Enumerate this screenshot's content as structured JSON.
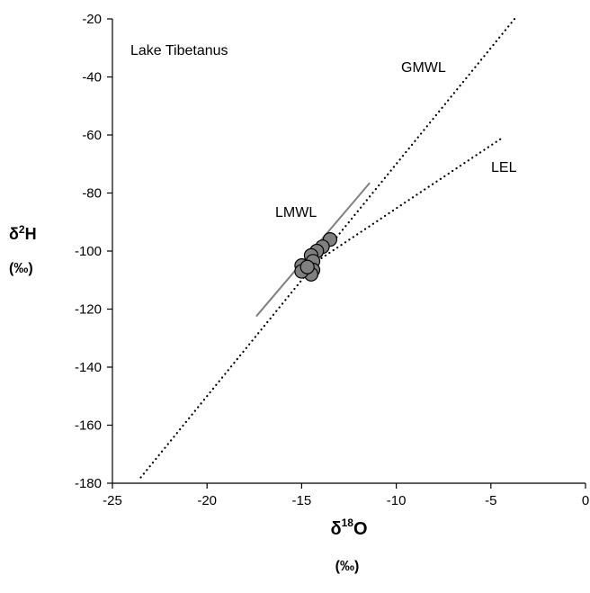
{
  "chart_data": {
    "type": "scatter",
    "title": "Lake Tibetanus",
    "xlabel": {
      "prefix": "δ",
      "sup": "18",
      "element": "O",
      "unit": "(‰)"
    },
    "ylabel": {
      "prefix": "δ",
      "sup": "2",
      "element": "H",
      "unit": "(‰)"
    },
    "xlim": [
      -25,
      0
    ],
    "ylim": [
      -180,
      -20
    ],
    "x_ticks": [
      -25,
      -20,
      -15,
      -10,
      -5,
      0
    ],
    "y_ticks": [
      -180,
      -160,
      -140,
      -120,
      -100,
      -80,
      -60,
      -40,
      -20
    ],
    "grid": false,
    "points": [
      {
        "x": -13.5,
        "y": -96
      },
      {
        "x": -13.9,
        "y": -98.5
      },
      {
        "x": -14.2,
        "y": -100
      },
      {
        "x": -14.5,
        "y": -101.5
      },
      {
        "x": -14.4,
        "y": -103.5
      },
      {
        "x": -14.4,
        "y": -106.5
      },
      {
        "x": -14.5,
        "y": -108
      },
      {
        "x": -15.0,
        "y": -105
      },
      {
        "x": -15.0,
        "y": -107
      },
      {
        "x": -14.7,
        "y": -105.5
      }
    ],
    "lines": [
      {
        "name": "GMWL",
        "style": "dotted",
        "x": [
          -23.5,
          -3.75
        ],
        "y": [
          -178,
          -20
        ]
      },
      {
        "name": "LEL",
        "style": "dotted",
        "x": [
          -15,
          -4.4
        ],
        "y": [
          -107,
          -61
        ]
      },
      {
        "name": "LMWL",
        "style": "solid",
        "color": "#808080",
        "x": [
          -17.4,
          -11.4
        ],
        "y": [
          -122.5,
          -76.5
        ]
      }
    ],
    "annotations": [
      "Lake Tibetanus",
      "GMWL",
      "LEL",
      "LMWL"
    ],
    "marker_color": "#808080"
  }
}
